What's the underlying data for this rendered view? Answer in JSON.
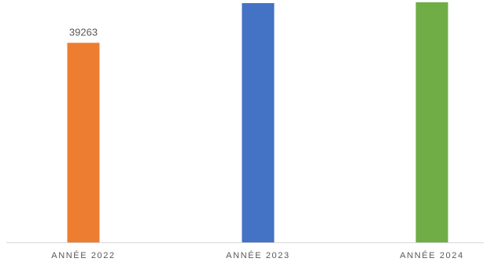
{
  "chart_data": {
    "type": "bar",
    "categories": [
      "ANNÉE 2022",
      "ANNÉE 2023",
      "ANNÉE 2024"
    ],
    "values": [
      39263,
      47076,
      47246
    ],
    "colors": [
      "#ED7D31",
      "#4472C4",
      "#70AD47"
    ],
    "ylim": [
      0,
      50000
    ],
    "grid": false,
    "legend": "none",
    "data_labels": true,
    "xlabel": "",
    "ylabel": ""
  }
}
